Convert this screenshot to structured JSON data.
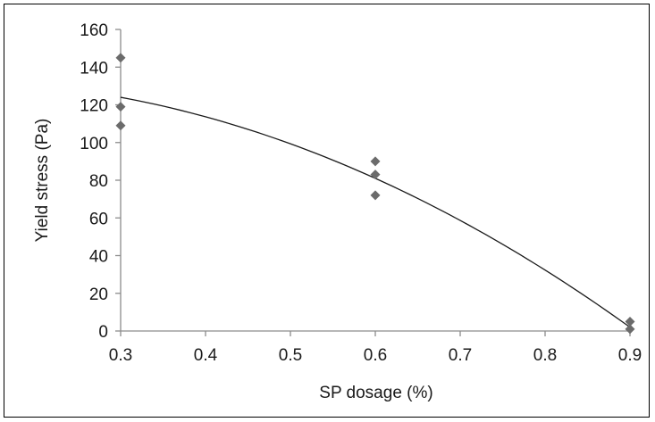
{
  "chart_data": {
    "type": "scatter",
    "title": "",
    "xlabel": "SP dosage (%)",
    "ylabel": "Yield stress (Pa)",
    "xlim": [
      0.3,
      0.9
    ],
    "ylim": [
      0,
      160
    ],
    "x_ticks": [
      "0.3",
      "0.4",
      "0.5",
      "0.6",
      "0.7",
      "0.8",
      "0.9"
    ],
    "y_ticks": [
      "0",
      "20",
      "40",
      "60",
      "80",
      "100",
      "120",
      "140",
      "160"
    ],
    "grid": false,
    "legend": "none",
    "marker_color": "#6b6b6b",
    "line_color": "#1a1a1a",
    "series": [
      {
        "points": [
          {
            "x": 0.3,
            "y": 145
          },
          {
            "x": 0.3,
            "y": 119
          },
          {
            "x": 0.3,
            "y": 109
          },
          {
            "x": 0.6,
            "y": 90
          },
          {
            "x": 0.6,
            "y": 83
          },
          {
            "x": 0.6,
            "y": 72
          },
          {
            "x": 0.9,
            "y": 5
          },
          {
            "x": 0.9,
            "y": 1
          }
        ]
      }
    ],
    "trendline": {
      "type": "polynomial",
      "points": [
        {
          "x": 0.3,
          "y": 124
        },
        {
          "x": 0.6,
          "y": 81
        },
        {
          "x": 0.9,
          "y": 2
        }
      ]
    }
  }
}
